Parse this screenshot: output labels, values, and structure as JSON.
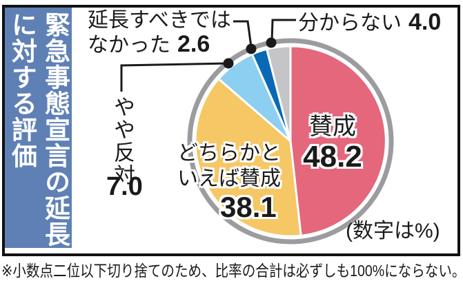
{
  "title": {
    "column1": "緊急事態宣言の延長",
    "column2": "に対する評価"
  },
  "chart_data": {
    "type": "pie",
    "title": "緊急事態宣言の延長に対する評価",
    "values_are": "percent",
    "unit_note": "(数字は%)",
    "footnote": "※小数点二位以下切り捨てのため、比率の合計は必ずしも100%にならない。",
    "start_angle_deg": 0,
    "direction": "clockwise",
    "slices": [
      {
        "id": "agree",
        "label": "賛成",
        "label_lines": [
          "賛成"
        ],
        "value": 48.2,
        "display": "48.2",
        "color": "#e4677c",
        "label_placement": "inside"
      },
      {
        "id": "somewhat-agree",
        "label": "どちらかといえば賛成",
        "label_lines": [
          "どちらかと",
          "いえば賛成"
        ],
        "value": 38.1,
        "display": "38.1",
        "color": "#f5c765",
        "label_placement": "inside"
      },
      {
        "id": "somewhat-oppose",
        "label": "やや反対",
        "label_lines": [
          "やや反対"
        ],
        "value": 7.0,
        "display": "7.0",
        "color": "#8dcff0",
        "label_placement": "outside"
      },
      {
        "id": "should-not-have-extended",
        "label": "延長すべきではなかった",
        "label_lines": [
          "延長すべきでは",
          "なかった"
        ],
        "value": 2.6,
        "display": "2.6",
        "color": "#0a69b4",
        "label_placement": "outside"
      },
      {
        "id": "dont-know",
        "label": "分からない",
        "label_lines": [
          "分からない"
        ],
        "value": 4.0,
        "display": "4.0",
        "color": "#c5c5c7",
        "label_placement": "outside"
      }
    ]
  },
  "colors": {
    "sidebar": "#5e80b5",
    "ring": "#9c9ca0",
    "leader": "#1a1a1a",
    "text": "#1a1a1a"
  }
}
